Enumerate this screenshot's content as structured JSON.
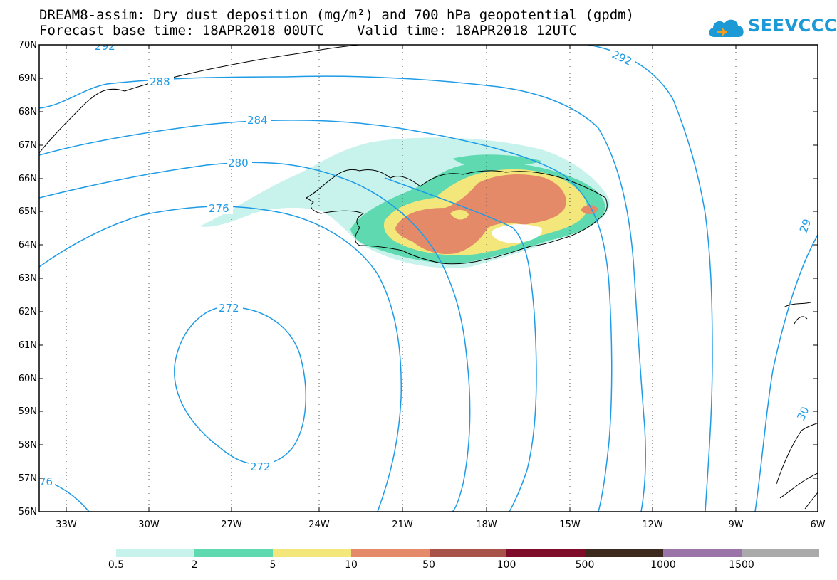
{
  "header": {
    "line1": "DREAM8-assim: Dry dust deposition (mg/m²) and 700 hPa geopotential (gpdm)",
    "line2": "Forecast base time: 18APR2018 00UTC    Valid time: 18APR2018 12UTC"
  },
  "logo": {
    "text": "SEEVCCC",
    "icon": "cloud-icon",
    "color": "#1c9ad6"
  },
  "map": {
    "lat_labels": [
      "70N",
      "69N",
      "68N",
      "67N",
      "66N",
      "65N",
      "64N",
      "63N",
      "62N",
      "61N",
      "60N",
      "59N",
      "58N",
      "57N",
      "56N"
    ],
    "lon_labels": [
      "33W",
      "30W",
      "27W",
      "24W",
      "21W",
      "18W",
      "15W",
      "12W",
      "9W",
      "6W"
    ],
    "contour_color": "#1e9be6",
    "contour_labels": [
      "292",
      "288",
      "284",
      "280",
      "276",
      "272",
      "272",
      "292",
      "76",
      "29",
      "30"
    ]
  },
  "legend": {
    "colors": [
      "#c8f2ec",
      "#5ed9b0",
      "#f3e67a",
      "#e58a68",
      "#a8524a",
      "#7e0c2a",
      "#3c2a1e",
      "#9a73a8",
      "#aaaaaa"
    ],
    "labels": [
      "0.5",
      "2",
      "5",
      "10",
      "50",
      "100",
      "500",
      "1000",
      "1500"
    ]
  }
}
